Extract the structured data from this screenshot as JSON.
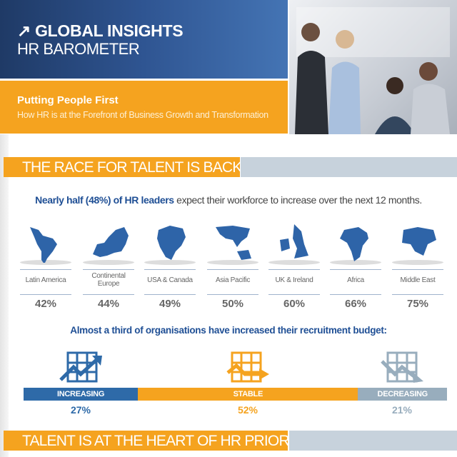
{
  "header": {
    "title": "GLOBAL INSIGHTS",
    "subtitle": "HR BAROMETER",
    "arrow_icon": "arrow-up-right"
  },
  "banner": {
    "title": "Putting People First",
    "subtitle": "How HR is at the Forefront of Business Growth and Transformation"
  },
  "section1": {
    "title": "THE RACE FOR TALENT IS BACK ON",
    "statement_bold": "Nearly half (48%) of HR leaders",
    "statement_rest": " expect their workforce to increase over the next 12 months.",
    "regions": [
      {
        "label": "Latin America",
        "value": "42%"
      },
      {
        "label": "Continental Europe",
        "value": "44%"
      },
      {
        "label": "USA & Canada",
        "value": "49%"
      },
      {
        "label": "Asia Pacific",
        "value": "50%"
      },
      {
        "label": "UK & Ireland",
        "value": "60%"
      },
      {
        "label": "Africa",
        "value": "66%"
      },
      {
        "label": "Middle East",
        "value": "75%"
      }
    ],
    "budget_question": "Almost a third of organisations have increased their recruitment budget:",
    "budget": [
      {
        "label": "INCREASING",
        "value": "27%",
        "color": "#2e6aa8"
      },
      {
        "label": "STABLE",
        "value": "52%",
        "color": "#f5a31f"
      },
      {
        "label": "DECREASING",
        "value": "21%",
        "color": "#98adbd"
      }
    ]
  },
  "section2": {
    "title": "TALENT IS AT THE HEART OF HR PRIORITIES"
  },
  "colors": {
    "blue": "#1f4f95",
    "orange": "#f5a31f",
    "grey_blue": "#c7d2dc"
  }
}
